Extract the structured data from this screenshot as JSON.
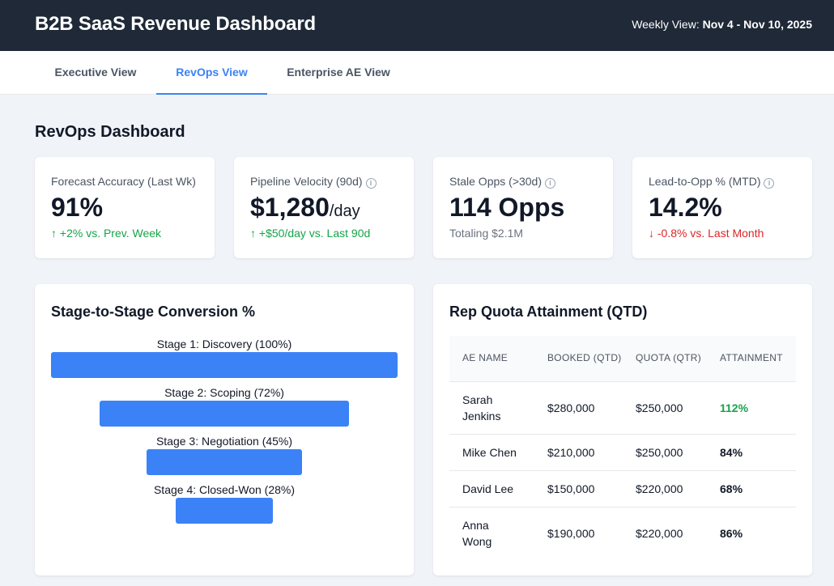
{
  "header": {
    "title": "B2B SaaS Revenue Dashboard",
    "week_label": "Weekly View:",
    "week_range": "Nov 4 - Nov 10, 2025"
  },
  "tabs": [
    {
      "label": "Executive View"
    },
    {
      "label": "RevOps View"
    },
    {
      "label": "Enterprise AE View"
    }
  ],
  "page": {
    "title": "RevOps Dashboard"
  },
  "kpis": [
    {
      "label": "Forecast Accuracy (Last Wk)",
      "value": "91%",
      "unit": "",
      "arrow": "↑",
      "delta": "+2% vs. Prev. Week"
    },
    {
      "label": "Pipeline Velocity (90d)",
      "info": "i",
      "value": "$1,280",
      "unit": "/day",
      "arrow": "↑",
      "delta": "+$50/day vs. Last 90d"
    },
    {
      "label": "Stale Opps (>30d)",
      "info": "i",
      "value": "114 Opps",
      "unit": "",
      "note": "Totaling $2.1M"
    },
    {
      "label": "Lead-to-Opp % (MTD)",
      "info": "i",
      "value": "14.2%",
      "unit": "",
      "arrow": "↓",
      "delta": "-0.8% vs. Last Month"
    }
  ],
  "funnel": {
    "title": "Stage-to-Stage Conversion %",
    "stages": [
      {
        "label": "Stage 1: Discovery (100%)",
        "percent": 100
      },
      {
        "label": "Stage 2: Scoping (72%)",
        "percent": 72
      },
      {
        "label": "Stage 3: Negotiation (45%)",
        "percent": 45
      },
      {
        "label": "Stage 4: Closed-Won (28%)",
        "percent": 28
      }
    ]
  },
  "quota": {
    "title": "Rep Quota Attainment (QTD)",
    "columns": [
      "AE Name",
      "Booked (QTD)",
      "Quota (QTR)",
      "Attainment"
    ],
    "rows": [
      {
        "name": "Sarah Jenkins",
        "booked": "$280,000",
        "quota": "$250,000",
        "attainment": "112%"
      },
      {
        "name": "Mike Chen",
        "booked": "$210,000",
        "quota": "$250,000",
        "attainment": "84%"
      },
      {
        "name": "David Lee",
        "booked": "$150,000",
        "quota": "$220,000",
        "attainment": "68%"
      },
      {
        "name": "Anna Wong",
        "booked": "$190,000",
        "quota": "$220,000",
        "attainment": "86%"
      }
    ]
  },
  "colors": {
    "accent": "#3b82f6",
    "positive": "#16a34a",
    "negative": "#dc2626",
    "header_bg": "#1f2937"
  }
}
